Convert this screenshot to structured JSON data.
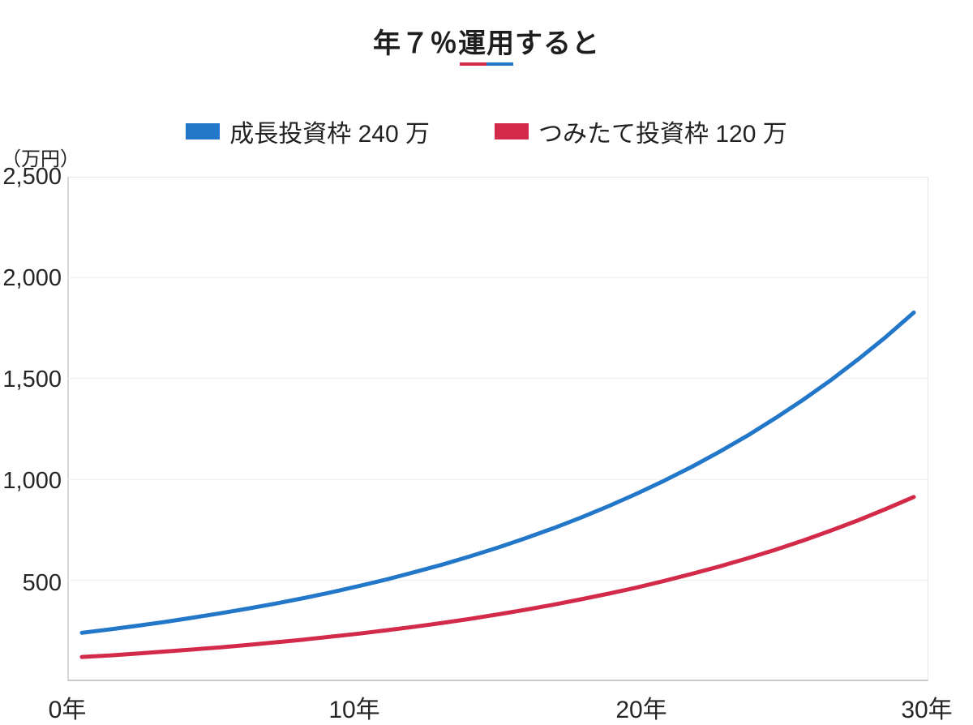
{
  "title": {
    "text": "年７％運用すると",
    "underline_colors": {
      "left": "#d32a4a",
      "right": "#2377c8"
    }
  },
  "legend": {
    "items": [
      {
        "label": "成長投資枠 240 万",
        "color": "#2377c8"
      },
      {
        "label": "つみたて投資枠 120 万",
        "color": "#d32a4a"
      }
    ]
  },
  "axis": {
    "unit_label": "（万円）",
    "y_tick_labels": [
      "2,500",
      "2,000",
      "1,500",
      "1,000",
      "500"
    ],
    "x_tick_labels": [
      "0年",
      "10年",
      "20年",
      "30年"
    ]
  },
  "colors": {
    "blue_line": "#2377c8",
    "red_line": "#d32a4a",
    "gridline": "#ededed",
    "text": "#222222"
  },
  "chart_data": {
    "type": "line",
    "title": "年７％運用すると",
    "subtitle": "",
    "xlabel": "年",
    "ylabel": "万円",
    "ylim": [
      0,
      2500
    ],
    "y_ticks": [
      500,
      1000,
      1500,
      2000,
      2500
    ],
    "x_ticks": [
      0,
      10,
      20,
      30
    ],
    "grid": "horizontal-only",
    "legend_position": "top-center",
    "annual_rate_percent": 7,
    "x": [
      0,
      1,
      2,
      3,
      4,
      5,
      6,
      7,
      8,
      9,
      10,
      11,
      12,
      13,
      14,
      15,
      16,
      17,
      18,
      19,
      20,
      21,
      22,
      23,
      24,
      25,
      26,
      27,
      28,
      29,
      30
    ],
    "series": [
      {
        "name": "成長投資枠 240 万",
        "color": "#2377c8",
        "principal_man_yen": 240,
        "values": [
          240,
          257,
          275,
          294,
          315,
          337,
          360,
          385,
          412,
          441,
          472,
          505,
          541,
          578,
          619,
          662,
          709,
          758,
          811,
          868,
          929,
          994,
          1063,
          1138,
          1217,
          1303,
          1394,
          1491,
          1596,
          1707,
          1827
        ]
      },
      {
        "name": "つみたて投資枠 120 万",
        "color": "#d32a4a",
        "principal_man_yen": 120,
        "values": [
          120,
          128,
          137,
          147,
          157,
          168,
          180,
          193,
          206,
          221,
          236,
          253,
          270,
          289,
          309,
          331,
          354,
          379,
          406,
          434,
          464,
          497,
          532,
          569,
          609,
          651,
          697,
          746,
          798,
          854,
          913
        ]
      }
    ]
  }
}
